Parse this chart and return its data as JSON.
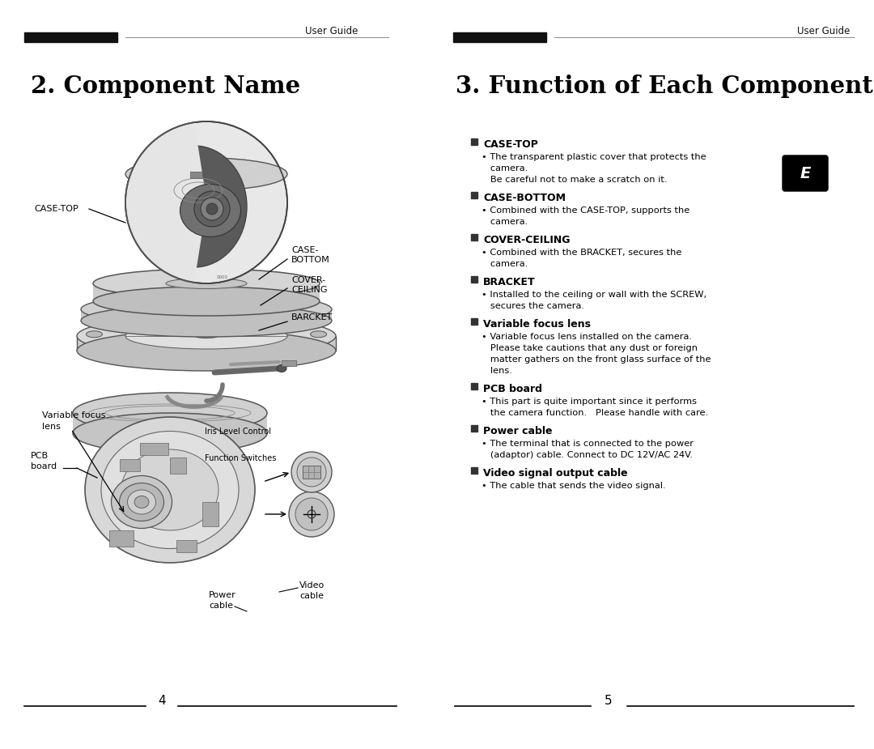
{
  "bg_color": "#ffffff",
  "left_title": "2. Component Name",
  "right_title": "3. Function of Each Component",
  "header_text": "User Guide",
  "left_page": "4",
  "right_page": "5",
  "right_sections": [
    {
      "header": "CASE-TOP",
      "bold": true,
      "body": "The transparent plastic cover that protects the\ncamera.\nBe careful not to make a scratch on it."
    },
    {
      "header": "CASE-BOTTOM",
      "bold": true,
      "body": "Combined with the CASE-TOP, supports the\ncamera."
    },
    {
      "header": "COVER-CEILING",
      "bold": true,
      "body": "Combined with the BRACKET, secures the\ncamera."
    },
    {
      "header": "BRACKET",
      "bold": true,
      "body": "Installed to the ceiling or wall with the SCREW,\nsecures the camera."
    },
    {
      "header": "Variable focus lens",
      "bold": false,
      "body": "Variable focus lens installed on the camera.\nPlease take cautions that any dust or foreign\nmatter gathers on the front glass surface of the\nlens."
    },
    {
      "header": "PCB board",
      "bold": false,
      "body": "This part is quite important since it performs\nthe camera function.   Please handle with care."
    },
    {
      "header": "Power cable",
      "bold": false,
      "body": "The terminal that is connected to the power\n(adaptor) cable. Connect to DC 12V/AC 24V."
    },
    {
      "header": "Video signal output cable",
      "bold": false,
      "body": "The cable that sends the video signal."
    }
  ]
}
